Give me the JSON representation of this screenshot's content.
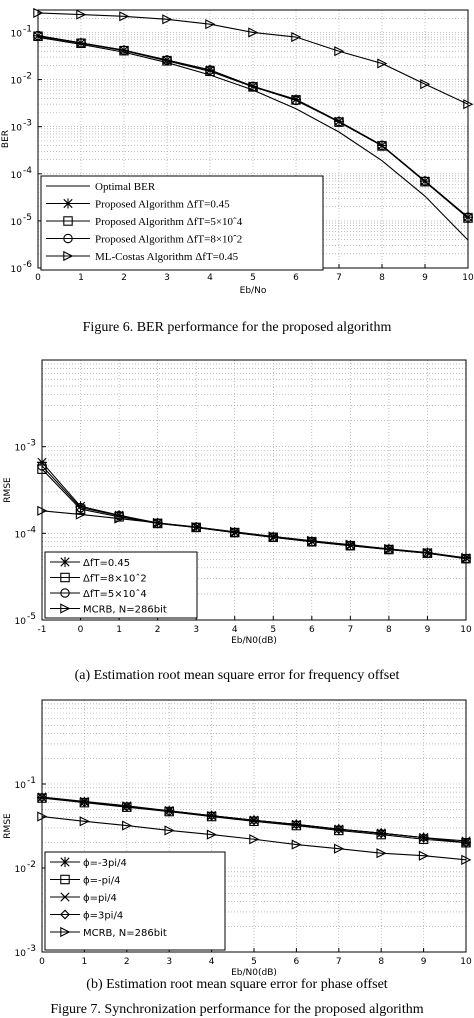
{
  "captions": {
    "fig6": "Figure 6.   BER performance for the proposed algorithm",
    "fig7a": "(a) Estimation root mean square error for frequency offset",
    "fig7b": "(b) Estimation root mean square error for phase offset",
    "fig7": "Figure 7.   Synchronization performance for the proposed algorithm"
  },
  "chart_data": [
    {
      "type": "line",
      "title": "",
      "xlabel": "Eb/No",
      "ylabel": "BER",
      "yscale": "log",
      "xlim": [
        0,
        10
      ],
      "ylim": [
        1e-06,
        0.3
      ],
      "x_ticks": [
        "0",
        "1",
        "2",
        "3",
        "4",
        "5",
        "6",
        "7",
        "8",
        "9",
        "10"
      ],
      "y_ticks": [
        {
          "value": 0.1,
          "m": "10",
          "e": "-1"
        },
        {
          "value": 0.01,
          "m": "10",
          "e": "-2"
        },
        {
          "value": 0.001,
          "m": "10",
          "e": "-3"
        },
        {
          "value": 0.0001,
          "m": "10",
          "e": "-4"
        },
        {
          "value": 1e-05,
          "m": "10",
          "e": "-5"
        },
        {
          "value": 1e-06,
          "m": "10",
          "e": "-6"
        }
      ],
      "grid": true,
      "legend_position": "bottom-left",
      "x": [
        0,
        1,
        2,
        3,
        4,
        5,
        6,
        7,
        8,
        9,
        10
      ],
      "series": [
        {
          "name": "Optimal BER",
          "marker": "none",
          "values": [
            0.079,
            0.056,
            0.038,
            0.023,
            0.0125,
            0.006,
            0.0024,
            0.00077,
            0.00019,
            3.35e-05,
            3.9e-06
          ]
        },
        {
          "name": "Proposed Algorithm ΔfT=0.45",
          "marker": "star",
          "values": [
            0.085,
            0.06,
            0.042,
            0.026,
            0.016,
            0.0072,
            0.0038,
            0.0013,
            0.0004,
            7e-05,
            1.2e-05
          ]
        },
        {
          "name": "Proposed Algorithm ΔfT=5×10ˆ4",
          "marker": "square",
          "values": [
            0.083,
            0.059,
            0.041,
            0.025,
            0.015,
            0.007,
            0.0037,
            0.00125,
            0.00039,
            6.8e-05,
            1.15e-05
          ]
        },
        {
          "name": "Proposed Algorithm ΔfT=8×10ˆ2",
          "marker": "circle",
          "values": [
            0.086,
            0.06,
            0.042,
            0.026,
            0.016,
            0.0071,
            0.0036,
            0.00128,
            0.0004,
            7e-05,
            1.2e-05
          ]
        },
        {
          "name": "ML-Costas Algorithm  ΔfT=0.45",
          "marker": "triangle-right",
          "values": [
            0.26,
            0.24,
            0.22,
            0.19,
            0.15,
            0.1,
            0.08,
            0.04,
            0.022,
            0.008,
            0.003
          ]
        }
      ]
    },
    {
      "type": "line",
      "title": "",
      "xlabel": "Eb/N0(dB)",
      "ylabel": "RMSE",
      "yscale": "log",
      "xlim": [
        -1,
        10
      ],
      "ylim": [
        1e-05,
        0.01
      ],
      "x_ticks": [
        "-1",
        "0",
        "1",
        "2",
        "3",
        "4",
        "5",
        "6",
        "7",
        "8",
        "9",
        "10"
      ],
      "y_ticks": [
        {
          "value": 0.001,
          "m": "10",
          "e": "-3"
        },
        {
          "value": 0.0001,
          "m": "10",
          "e": "-4"
        },
        {
          "value": 1e-05,
          "m": "10",
          "e": "-5"
        }
      ],
      "grid": true,
      "legend_position": "bottom-left",
      "x": [
        -1,
        0,
        1,
        2,
        3,
        4,
        5,
        6,
        7,
        8,
        9,
        10
      ],
      "series": [
        {
          "name": "ΔfT=0.45",
          "marker": "star",
          "values": [
            0.00066,
            0.000205,
            0.000162,
            0.000132,
            0.000118,
            0.000103,
            9.1e-05,
            8.1e-05,
            7.3e-05,
            6.6e-05,
            6e-05,
            5.2e-05
          ]
        },
        {
          "name": "ΔfT=8×10ˆ2",
          "marker": "square",
          "values": [
            0.00055,
            0.00019,
            0.000155,
            0.00013,
            0.000117,
            0.000102,
            9e-05,
            8e-05,
            7.2e-05,
            6.5e-05,
            5.9e-05,
            5.1e-05
          ]
        },
        {
          "name": "ΔfT=5×10ˆ4",
          "marker": "circle",
          "values": [
            0.0006,
            0.000198,
            0.00016,
            0.000131,
            0.000117,
            0.000102,
            9e-05,
            8e-05,
            7.2e-05,
            6.5e-05,
            5.9e-05,
            5.1e-05
          ]
        },
        {
          "name": "MCRB, N=286bit",
          "marker": "triangle-right",
          "values": [
            0.000182,
            0.000165,
            0.000148,
            0.000132,
            0.000118,
            0.000104,
            9.2e-05,
            8.2e-05,
            7.4e-05,
            6.6e-05,
            5.9e-05,
            5.2e-05
          ]
        }
      ]
    },
    {
      "type": "line",
      "title": "",
      "xlabel": "Eb/N0(dB)",
      "ylabel": "RMSE",
      "yscale": "log",
      "xlim": [
        0,
        10
      ],
      "ylim": [
        0.001,
        1
      ],
      "x_ticks": [
        "0",
        "1",
        "2",
        "3",
        "4",
        "5",
        "6",
        "7",
        "8",
        "9",
        "10"
      ],
      "y_ticks": [
        {
          "value": 0.1,
          "m": "10",
          "e": "-1"
        },
        {
          "value": 0.01,
          "m": "10",
          "e": "-2"
        },
        {
          "value": 0.001,
          "m": "10",
          "e": "-3"
        }
      ],
      "grid": true,
      "legend_position": "bottom-left",
      "x": [
        0,
        1,
        2,
        3,
        4,
        5,
        6,
        7,
        8,
        9,
        10
      ],
      "series": [
        {
          "name": "ϕ=-3pi/4",
          "marker": "star",
          "values": [
            0.069,
            0.061,
            0.054,
            0.048,
            0.042,
            0.037,
            0.033,
            0.029,
            0.026,
            0.023,
            0.02
          ]
        },
        {
          "name": "ϕ=-pi/4",
          "marker": "square",
          "values": [
            0.068,
            0.06,
            0.053,
            0.047,
            0.041,
            0.036,
            0.032,
            0.028,
            0.025,
            0.022,
            0.02
          ]
        },
        {
          "name": "ϕ=pi/4",
          "marker": "x",
          "values": [
            0.07,
            0.062,
            0.055,
            0.048,
            0.042,
            0.037,
            0.033,
            0.029,
            0.026,
            0.023,
            0.021
          ]
        },
        {
          "name": "ϕ=3pi/4",
          "marker": "diamond",
          "values": [
            0.069,
            0.061,
            0.054,
            0.047,
            0.042,
            0.037,
            0.033,
            0.029,
            0.026,
            0.023,
            0.02
          ]
        },
        {
          "name": "MCRB, N=286bit",
          "marker": "triangle-right",
          "values": [
            0.041,
            0.036,
            0.032,
            0.028,
            0.025,
            0.022,
            0.019,
            0.017,
            0.015,
            0.014,
            0.0125
          ]
        }
      ]
    }
  ]
}
